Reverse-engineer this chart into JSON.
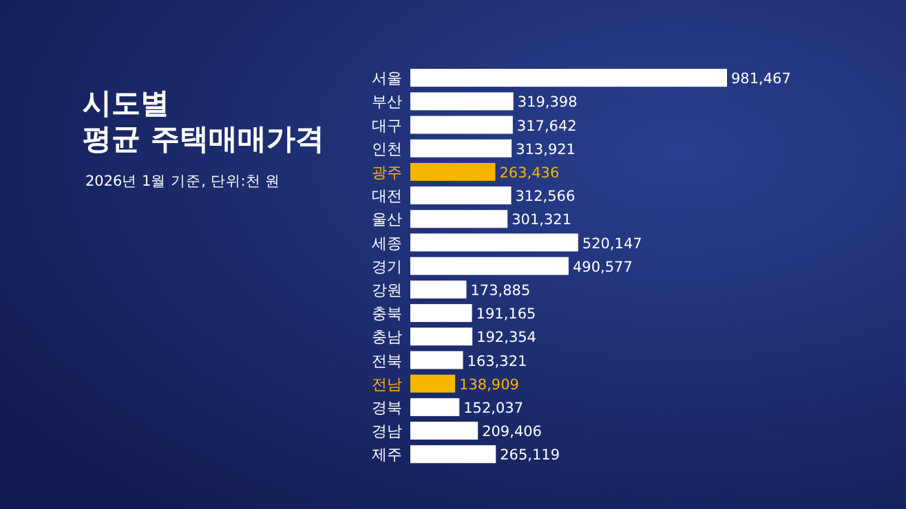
{
  "chart_data": {
    "type": "bar",
    "orientation": "horizontal",
    "title": "시도별\n평균 주택매매가격",
    "subtitle": "2026년 1월 기준, 단위:천 원",
    "categories": [
      "서울",
      "부산",
      "대구",
      "인천",
      "광주",
      "대전",
      "울산",
      "세종",
      "경기",
      "강원",
      "충북",
      "충남",
      "전북",
      "전남",
      "경북",
      "경남",
      "제주"
    ],
    "values": [
      981467,
      319398,
      317642,
      313921,
      263436,
      312566,
      301321,
      520147,
      490577,
      173885,
      191165,
      192354,
      163321,
      138909,
      152037,
      209406,
      265119
    ],
    "colors": [
      "#ffffff",
      "#ffffff",
      "#ffffff",
      "#ffffff",
      "#f7b500",
      "#ffffff",
      "#ffffff",
      "#ffffff",
      "#ffffff",
      "#ffffff",
      "#ffffff",
      "#ffffff",
      "#ffffff",
      "#f7b500",
      "#ffffff",
      "#ffffff",
      "#ffffff"
    ],
    "value_labels": [
      "981,467",
      "319,398",
      "317,642",
      "313,921",
      "263,436",
      "312,566",
      "301,321",
      "520,147",
      "490,577",
      "173,885",
      "191,165",
      "192,354",
      "163,321",
      "138,909",
      "152,037",
      "209,406",
      "265,119"
    ]
  }
}
